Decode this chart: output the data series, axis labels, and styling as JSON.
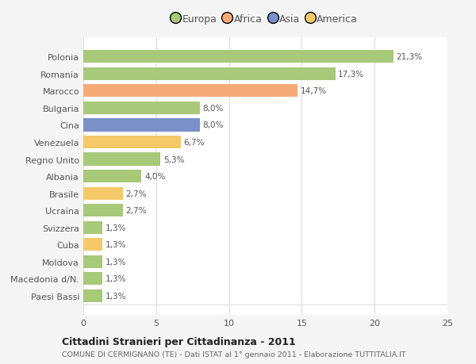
{
  "categories": [
    "Paesi Bassi",
    "Macedonia d/N.",
    "Moldova",
    "Cuba",
    "Svizzera",
    "Ucraina",
    "Brasile",
    "Albania",
    "Regno Unito",
    "Venezuela",
    "Cina",
    "Bulgaria",
    "Marocco",
    "Romania",
    "Polonia"
  ],
  "values": [
    1.3,
    1.3,
    1.3,
    1.3,
    1.3,
    2.7,
    2.7,
    4.0,
    5.3,
    6.7,
    8.0,
    8.0,
    14.7,
    17.3,
    21.3
  ],
  "colors": [
    "#a8c87a",
    "#a8c87a",
    "#a8c87a",
    "#f5c96a",
    "#a8c87a",
    "#a8c87a",
    "#f5c96a",
    "#a8c87a",
    "#a8c87a",
    "#f5c96a",
    "#7a90c8",
    "#a8c87a",
    "#f5aa78",
    "#a8c87a",
    "#a8c87a"
  ],
  "labels": [
    "1,3%",
    "1,3%",
    "1,3%",
    "1,3%",
    "1,3%",
    "2,7%",
    "2,7%",
    "4,0%",
    "5,3%",
    "6,7%",
    "8,0%",
    "8,0%",
    "14,7%",
    "17,3%",
    "21,3%"
  ],
  "legend_labels": [
    "Europa",
    "Africa",
    "Asia",
    "America"
  ],
  "legend_colors": [
    "#a8c87a",
    "#f5aa78",
    "#7a90c8",
    "#f5c96a"
  ],
  "title": "Cittadini Stranieri per Cittadinanza - 2011",
  "subtitle": "COMUNE DI CERMIGNANO (TE) - Dati ISTAT al 1° gennaio 2011 - Elaborazione TUTTITALIA.IT",
  "xlim": [
    0,
    25
  ],
  "xticks": [
    0,
    5,
    10,
    15,
    20,
    25
  ],
  "background_color": "#f5f5f5",
  "bar_background": "#ffffff",
  "grid_color": "#dddddd",
  "text_color": "#555555",
  "label_color": "#555555"
}
